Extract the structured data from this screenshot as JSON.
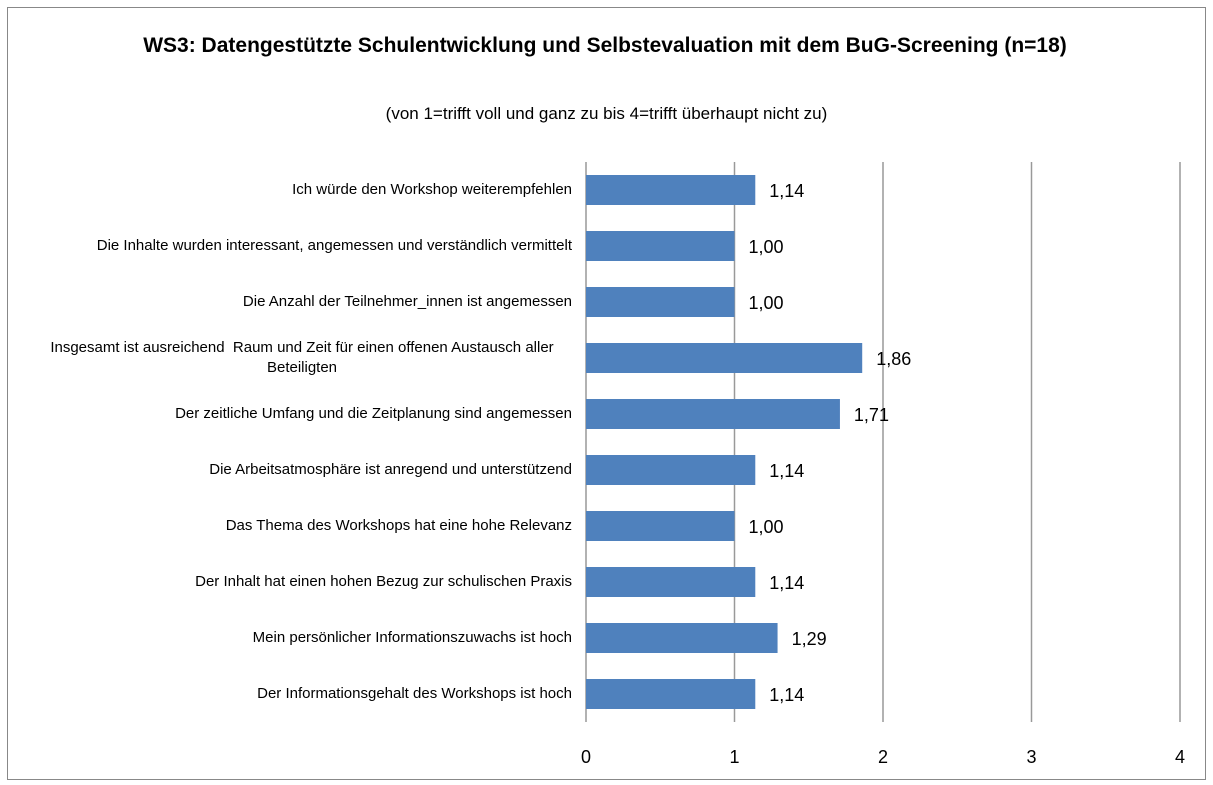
{
  "chart_data": {
    "type": "bar",
    "orientation": "horizontal",
    "title": "WS3: Datengestützte Schulentwicklung und Selbstevaluation mit dem BuG-Screening  (n=18)",
    "subtitle": "(von 1=trifft voll und ganz zu bis 4=trifft überhaupt nicht zu)",
    "categories": [
      "Ich würde den Workshop weiterempfehlen",
      "Die Inhalte wurden interessant, angemessen und verständlich vermittelt",
      "Die Anzahl der Teilnehmer_innen ist angemessen",
      "Insgesamt ist ausreichend  Raum und Zeit für einen offenen Austausch aller Beteiligten",
      "Der zeitliche Umfang und die Zeitplanung sind angemessen",
      "Die Arbeitsatmosphäre ist anregend und unterstützend",
      "Das Thema des Workshops hat eine hohe Relevanz",
      "Der Inhalt hat einen hohen Bezug zur schulischen Praxis",
      "Mein persönlicher Informationszuwachs ist hoch",
      "Der Informationsgehalt des Workshops ist hoch"
    ],
    "values": [
      1.14,
      1.0,
      1.0,
      1.86,
      1.71,
      1.14,
      1.0,
      1.14,
      1.29,
      1.14
    ],
    "value_labels": [
      "1,14",
      "1,00",
      "1,00",
      "1,86",
      "1,71",
      "1,14",
      "1,00",
      "1,14",
      "1,29",
      "1,14"
    ],
    "color": "#4f81bd",
    "xlim": [
      0,
      4
    ],
    "xticks": [
      0,
      1,
      2,
      3,
      4
    ],
    "grid": true
  }
}
